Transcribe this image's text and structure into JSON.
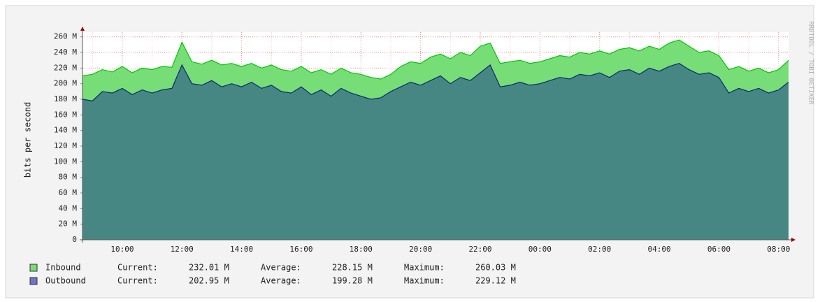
{
  "chart_data": {
    "type": "area",
    "y_label": "bits per second",
    "watermark": "RRDTOOL / TOBI OETIKER",
    "categories": [
      null,
      null,
      null,
      null,
      "10:00",
      null,
      null,
      null,
      null,
      null,
      "12:00",
      null,
      null,
      null,
      null,
      null,
      "14:00",
      null,
      null,
      null,
      null,
      null,
      "16:00",
      null,
      null,
      null,
      null,
      null,
      "18:00",
      null,
      null,
      null,
      null,
      null,
      "20:00",
      null,
      null,
      null,
      null,
      null,
      "22:00",
      null,
      null,
      null,
      null,
      null,
      "00:00",
      null,
      null,
      null,
      null,
      null,
      "02:00",
      null,
      null,
      null,
      null,
      null,
      "04:00",
      null,
      null,
      null,
      null,
      null,
      "06:00",
      null,
      null,
      null,
      null,
      null,
      "08:00",
      null
    ],
    "series": [
      {
        "name": "Inbound",
        "color": "#77dd77",
        "line_color": "#00c800",
        "values": [
          210,
          212,
          218,
          215,
          222,
          214,
          220,
          218,
          222,
          221,
          253,
          228,
          225,
          230,
          224,
          226,
          222,
          226,
          220,
          224,
          218,
          216,
          222,
          214,
          218,
          212,
          220,
          214,
          212,
          208,
          206,
          212,
          222,
          228,
          226,
          234,
          238,
          232,
          240,
          236,
          248,
          252,
          226,
          228,
          230,
          226,
          228,
          232,
          236,
          234,
          240,
          238,
          242,
          238,
          244,
          246,
          242,
          248,
          244,
          252,
          256,
          248,
          240,
          242,
          236,
          218,
          222,
          216,
          220,
          214,
          218,
          230
        ],
        "stats": [
          {
            "label": "Current:",
            "text": "232.01 M"
          },
          {
            "label": "Average:",
            "text": "228.15 M"
          },
          {
            "label": "Maximum:",
            "text": "260.03 M"
          }
        ]
      },
      {
        "name": "Outbound",
        "color": "#6a78c4",
        "fill": "#1f3f8f",
        "line_color": "#0a2a6a",
        "values": [
          180,
          178,
          190,
          188,
          194,
          186,
          192,
          188,
          192,
          194,
          224,
          200,
          198,
          204,
          196,
          200,
          196,
          202,
          194,
          198,
          190,
          188,
          196,
          186,
          192,
          184,
          194,
          188,
          184,
          180,
          182,
          190,
          196,
          202,
          198,
          204,
          210,
          200,
          208,
          204,
          214,
          224,
          196,
          198,
          202,
          198,
          200,
          204,
          208,
          206,
          212,
          210,
          214,
          208,
          216,
          218,
          212,
          220,
          216,
          222,
          226,
          218,
          212,
          214,
          208,
          188,
          194,
          190,
          194,
          188,
          192,
          202
        ],
        "stats": [
          {
            "label": "Current:",
            "text": "202.95 M"
          },
          {
            "label": "Average:",
            "text": "199.28 M"
          },
          {
            "label": "Maximum:",
            "text": "229.12 M"
          }
        ]
      }
    ],
    "ylim": [
      0,
      266
    ],
    "yticks": [
      0,
      {
        "value": 20,
        "label": "20 M"
      },
      {
        "value": 40,
        "label": "40 M"
      },
      {
        "value": 60,
        "label": "60 M"
      },
      {
        "value": 80,
        "label": "80 M"
      },
      {
        "value": 100,
        "label": "100 M"
      },
      {
        "value": 120,
        "label": "120 M"
      },
      {
        "value": 140,
        "label": "140 M"
      },
      {
        "value": 160,
        "label": "160 M"
      },
      {
        "value": 180,
        "label": "180 M"
      },
      {
        "value": 200,
        "label": "200 M"
      },
      {
        "value": 220,
        "label": "220 M"
      },
      {
        "value": 240,
        "label": "240 M"
      },
      {
        "value": 260,
        "label": "260 M"
      }
    ],
    "grid": true
  }
}
